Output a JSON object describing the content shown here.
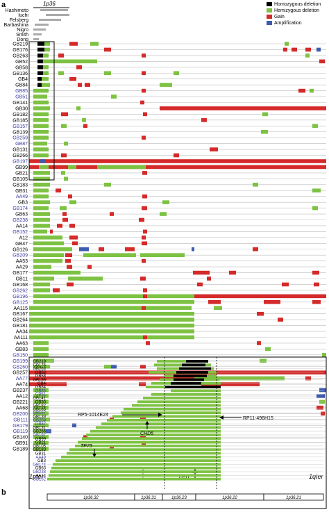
{
  "panel_a": {
    "letter": "a",
    "region_label": "1p36",
    "studies": [
      "Hashimoto",
      "Iuchi",
      "Felsberg",
      "Barbashina",
      "Nigro",
      "Smith",
      "Dong"
    ],
    "legend": [
      {
        "label": "Homozygous deletion",
        "color": "#000000"
      },
      {
        "label": "Hemizygous deletion",
        "color": "#7dc242"
      },
      {
        "label": "Gain",
        "color": "#d42a2a"
      },
      {
        "label": "Amplification",
        "color": "#3d5bb0"
      }
    ],
    "x_left_label": "1pter",
    "x_right_label": "1qter",
    "cen_label": "cen",
    "sample_labels": [
      "GB219",
      "GB176",
      "GB263",
      "GB52",
      "GB58",
      "GB136",
      "GB4",
      "GB84",
      "GB85",
      "GB51",
      "GB141",
      "GB30",
      "GB182",
      "GB185",
      "GB157",
      "GB139",
      "GB259",
      "GB87",
      "GB131",
      "GB266",
      "GB197",
      "GB99",
      "GB21",
      "GB105",
      "GB183",
      "GB31",
      "AA49",
      "GB3",
      "GB174",
      "GB63",
      "GB238",
      "AA14",
      "GB152",
      "A12",
      "GB47",
      "GB126",
      "GB209",
      "AA53",
      "AA29",
      "GB177",
      "GB11",
      "GB168",
      "GB262",
      "GB196",
      "GB125",
      "AA115",
      "GB167",
      "GB264",
      "GB181",
      "AA34",
      "AA111",
      "AA63",
      "GB83",
      "GB150",
      "GB199",
      "GB260",
      "GB257",
      "AA77",
      "AA74",
      "GB237",
      "AA12",
      "GB221",
      "AA68",
      "GB200",
      "GB111",
      "GB179",
      "GB119",
      "GB140",
      "GB91",
      "GB189"
    ],
    "blue_samples": [
      8,
      9,
      14,
      16,
      17,
      20,
      26,
      28,
      30,
      32,
      36,
      42,
      43,
      44,
      53,
      54,
      55,
      57,
      63,
      64,
      65,
      66
    ]
  },
  "panel_b": {
    "letter": "b",
    "sample_labels": [
      "GB219",
      "GB176",
      "GB263",
      "GB52",
      "GB58",
      "GB136",
      "GB4",
      "GB84",
      "GB85",
      "GB51",
      "GB141",
      "GB30",
      "GB182",
      "GB185",
      "GB157",
      "GB139",
      "GB259",
      "GB87",
      "GB131",
      "GB266",
      "GB197",
      "GB99",
      "GB21",
      "GB105",
      "GB183",
      "GB31",
      "AA49",
      "GB3",
      "GB174",
      "GB63",
      "GB238",
      "AA14",
      "GB152"
    ],
    "blue_samples": [
      8,
      9,
      14,
      16,
      17,
      20,
      26,
      28,
      30,
      32
    ],
    "annotations": {
      "rp5": "RP5-1014E24",
      "rp11": "RP11-496H15",
      "chd5": "CHD5",
      "tp73": "TP73"
    },
    "bands": [
      "1p36.32",
      "1p36.31",
      "1p36.23",
      "1p36.22",
      "1p36.21"
    ]
  },
  "chart_data": {
    "type": "genome-segment-map",
    "panels": [
      {
        "panel": "a",
        "x_axis": [
          "1pter",
          "cen",
          "1qter"
        ],
        "categories_legend": [
          "Homozygous deletion",
          "Hemizygous deletion",
          "Gain",
          "Amplification"
        ]
      },
      {
        "panel": "b",
        "x_axis_bands": [
          "1p36.32",
          "1p36.31",
          "1p36.23",
          "1p36.22",
          "1p36.21"
        ],
        "markers": [
          "RP5-1014E24",
          "RP11-496H15",
          "CHD5",
          "TP73"
        ]
      }
    ]
  }
}
